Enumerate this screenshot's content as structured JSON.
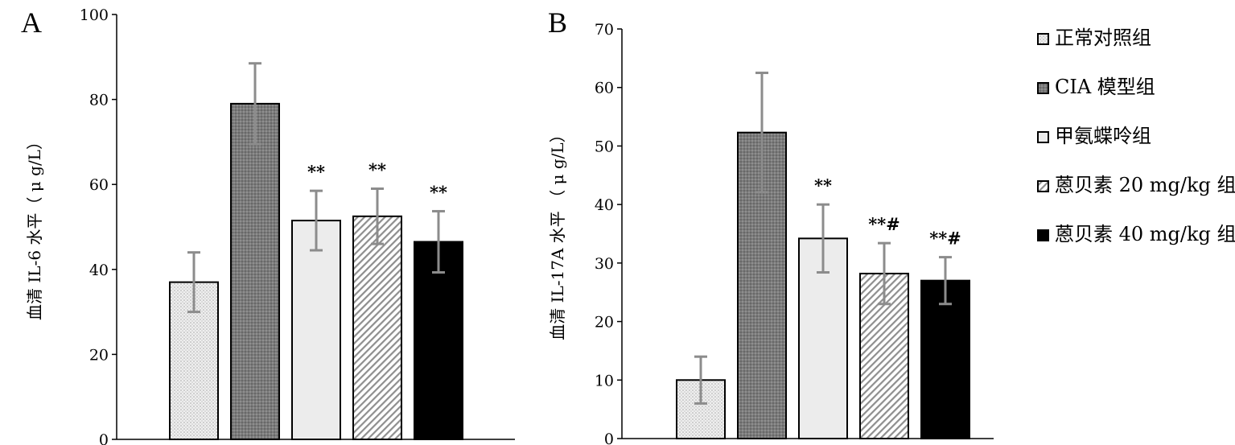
{
  "colors": {
    "axis": "#000000",
    "error_bar": "#8c8c8c",
    "bar_outline": "#000000"
  },
  "legend": {
    "position": "right",
    "items": [
      {
        "label": "正常对照组",
        "pattern": "dotted-light"
      },
      {
        "label": "CIA 模型组",
        "pattern": "dense-gray"
      },
      {
        "label": "甲氨蝶呤组",
        "pattern": "plain-light"
      },
      {
        "label": "蒽贝素 20 mg/kg 组",
        "pattern": "diagonal"
      },
      {
        "label": "蒽贝素 40 mg/kg 组",
        "pattern": "solid-black"
      }
    ]
  },
  "chart_data": [
    {
      "type": "bar",
      "panel": "A",
      "ylabel": "血清 IL-6 水平（ μ g/L）",
      "ylim": [
        0,
        100
      ],
      "yticks": [
        0,
        20,
        40,
        60,
        80,
        100
      ],
      "grid": false,
      "series": [
        {
          "values": [
            37,
            79,
            51.5,
            52.5,
            46.5
          ],
          "errors": [
            7,
            9.5,
            7,
            6.5,
            7.2
          ],
          "annotations": [
            "",
            "",
            "**",
            "**",
            "**"
          ]
        }
      ]
    },
    {
      "type": "bar",
      "panel": "B",
      "ylabel": "血清 IL-17A 水平 （ μ g/L）",
      "ylim": [
        0,
        70
      ],
      "yticks": [
        0,
        10,
        20,
        30,
        40,
        50,
        60,
        70
      ],
      "grid": false,
      "series": [
        {
          "values": [
            10,
            52.3,
            34.2,
            28.2,
            27
          ],
          "errors": [
            4,
            10.2,
            5.8,
            5.2,
            4
          ],
          "annotations": [
            "",
            "",
            "**",
            "**#",
            "**#"
          ]
        }
      ]
    }
  ]
}
